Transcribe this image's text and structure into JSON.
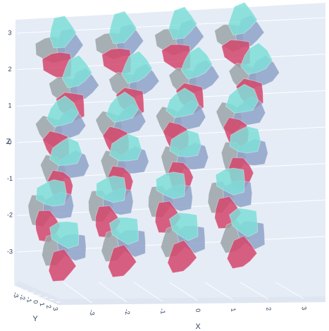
{
  "chart_data": {
    "type": "mesh3d",
    "x_title": "X",
    "y_title": "Y",
    "z_title": "Z",
    "xlim": [
      -3,
      3
    ],
    "ylim": [
      -3,
      3
    ],
    "zlim": [
      -3,
      3
    ],
    "xticks": [
      -3,
      -2,
      -1,
      0,
      1,
      2,
      3
    ],
    "yticks": [
      -3,
      -2,
      -1,
      0,
      1,
      2,
      3
    ],
    "zticks": [
      -3,
      -2,
      -1,
      0,
      1,
      2,
      3
    ],
    "colors": [
      "#9aa5a8",
      "#8ea3c8",
      "#d4476c",
      "#7fded8"
    ]
  }
}
